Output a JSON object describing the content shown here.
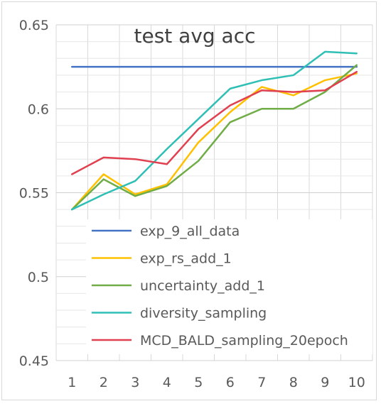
{
  "chart_data": {
    "type": "line",
    "title": "test avg acc",
    "xlabel": "",
    "ylabel": "",
    "categories": [
      "1",
      "2",
      "3",
      "4",
      "5",
      "6",
      "7",
      "8",
      "9",
      "10"
    ],
    "ylim": [
      0.45,
      0.65
    ],
    "yticks": [
      "0.45",
      "0.5",
      "0.55",
      "0.6",
      "0.65"
    ],
    "grid": true,
    "legend_position": "inside-bottom",
    "series": [
      {
        "name": "exp_9_all_data",
        "color": "#4472C4",
        "values": [
          0.625,
          0.625,
          0.625,
          0.625,
          0.625,
          0.625,
          0.625,
          0.625,
          0.625,
          0.625
        ]
      },
      {
        "name": "exp_rs_add_1",
        "color": "#FFC000",
        "values": [
          0.54,
          0.561,
          0.549,
          0.555,
          0.58,
          0.598,
          0.613,
          0.608,
          0.617,
          0.621
        ]
      },
      {
        "name": "uncertainty_add_1",
        "color": "#70AD47",
        "values": [
          0.54,
          0.558,
          0.548,
          0.554,
          0.569,
          0.592,
          0.6,
          0.6,
          0.61,
          0.626
        ]
      },
      {
        "name": "diversity_sampling",
        "color": "#2EBFB5",
        "values": [
          0.54,
          0.549,
          0.557,
          0.576,
          0.594,
          0.612,
          0.617,
          0.62,
          0.634,
          0.633
        ]
      },
      {
        "name": "MCD_BALD_sampling_20epoch",
        "color": "#E0404F",
        "values": [
          0.561,
          0.571,
          0.57,
          0.567,
          0.588,
          0.602,
          0.611,
          0.61,
          0.611,
          0.622
        ]
      }
    ]
  }
}
